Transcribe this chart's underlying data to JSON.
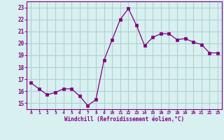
{
  "x": [
    0,
    1,
    2,
    3,
    4,
    5,
    6,
    7,
    8,
    9,
    10,
    11,
    12,
    13,
    14,
    15,
    16,
    17,
    18,
    19,
    20,
    21,
    22,
    23
  ],
  "y": [
    16.7,
    16.2,
    15.7,
    15.9,
    16.2,
    16.2,
    15.6,
    14.8,
    15.3,
    18.6,
    20.3,
    22.0,
    22.9,
    21.5,
    19.8,
    20.5,
    20.8,
    20.8,
    20.3,
    20.4,
    20.1,
    19.9,
    19.2,
    19.2
  ],
  "line_color": "#800080",
  "marker": "s",
  "marker_size": 2.5,
  "bg_color": "#d8f0f0",
  "grid_color": "#b0d0d0",
  "xlabel": "Windchill (Refroidissement éolien,°C)",
  "xlabel_color": "#800080",
  "tick_color": "#800080",
  "ylim": [
    14.5,
    23.5
  ],
  "yticks": [
    15,
    16,
    17,
    18,
    19,
    20,
    21,
    22,
    23
  ],
  "xlim": [
    -0.5,
    23.5
  ],
  "xticks": [
    0,
    1,
    2,
    3,
    4,
    5,
    6,
    7,
    8,
    9,
    10,
    11,
    12,
    13,
    14,
    15,
    16,
    17,
    18,
    19,
    20,
    21,
    22,
    23
  ],
  "xtick_labels": [
    "0",
    "1",
    "2",
    "3",
    "4",
    "5",
    "6",
    "7",
    "8",
    "9",
    "10",
    "11",
    "12",
    "13",
    "14",
    "15",
    "16",
    "17",
    "18",
    "19",
    "20",
    "21",
    "22",
    "23"
  ]
}
